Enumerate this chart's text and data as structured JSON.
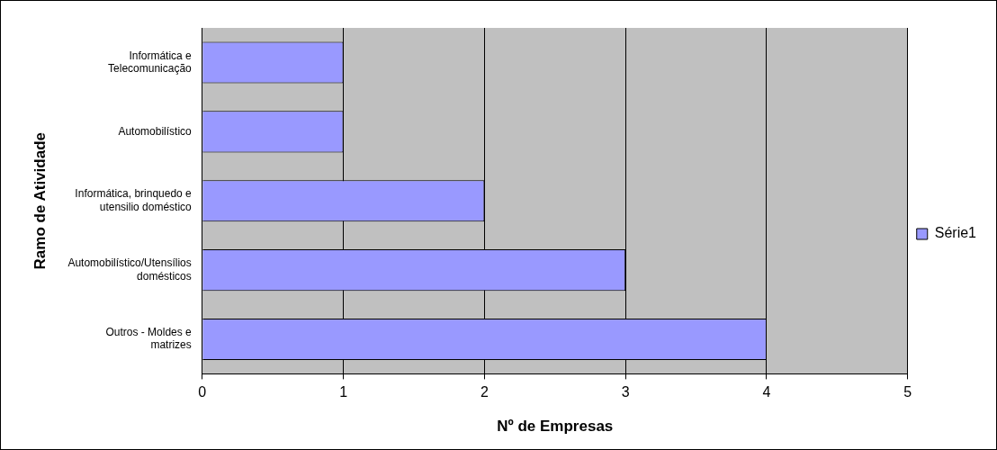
{
  "chart_data": {
    "type": "bar",
    "orientation": "horizontal",
    "xlabel": "Nº de Empresas",
    "ylabel": "Ramo de Atividade",
    "categories": [
      "Informática e Telecomunicação",
      "Automobilístico",
      "Informática, brinquedo e utensilio doméstico",
      "Automobilístico/Utensílios domésticos",
      "Outros - Moldes e matrizes"
    ],
    "series": [
      {
        "name": "Série1",
        "color": "#9999ff",
        "values": [
          1,
          1,
          2,
          3,
          4
        ]
      }
    ],
    "xlim": [
      0,
      5
    ],
    "xticks": [
      0,
      1,
      2,
      3,
      4,
      5
    ],
    "grid": "x",
    "legend": "right"
  }
}
